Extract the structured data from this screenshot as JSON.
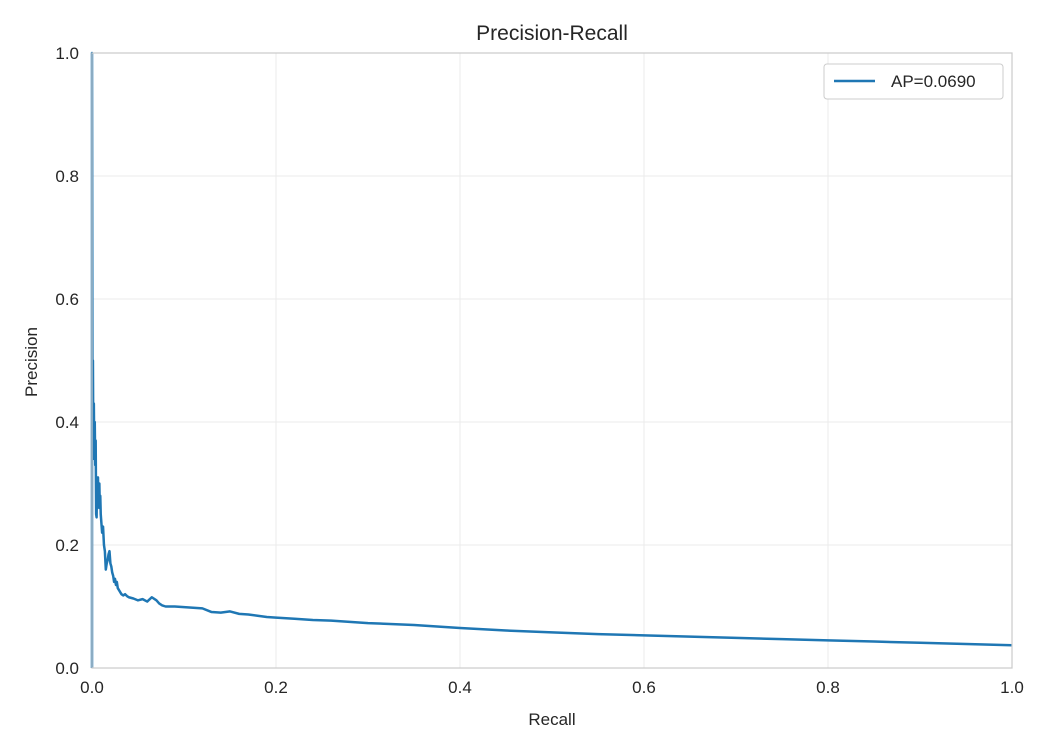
{
  "chart_data": {
    "type": "line",
    "title": "Precision-Recall",
    "xlabel": "Recall",
    "ylabel": "Precision",
    "xlim": [
      0.0,
      1.0
    ],
    "ylim": [
      0.0,
      1.0
    ],
    "xticks": [
      0.0,
      0.2,
      0.4,
      0.6,
      0.8,
      1.0
    ],
    "yticks": [
      0.0,
      0.2,
      0.4,
      0.6,
      0.8,
      1.0
    ],
    "xtick_labels": [
      "0.0",
      "0.2",
      "0.4",
      "0.6",
      "0.8",
      "1.0"
    ],
    "ytick_labels": [
      "0.0",
      "0.2",
      "0.4",
      "0.6",
      "0.8",
      "1.0"
    ],
    "grid": true,
    "legend_position": "top-right",
    "series": [
      {
        "name": "AP=0.0690",
        "color": "#1f77b4",
        "x": [
          0.0,
          0.0,
          0.0005,
          0.001,
          0.0015,
          0.002,
          0.0025,
          0.003,
          0.0035,
          0.004,
          0.0045,
          0.005,
          0.0055,
          0.006,
          0.0065,
          0.007,
          0.0075,
          0.008,
          0.0085,
          0.009,
          0.0095,
          0.01,
          0.011,
          0.012,
          0.013,
          0.014,
          0.015,
          0.016,
          0.017,
          0.018,
          0.019,
          0.02,
          0.021,
          0.022,
          0.023,
          0.024,
          0.025,
          0.026,
          0.027,
          0.028,
          0.03,
          0.032,
          0.034,
          0.036,
          0.038,
          0.04,
          0.045,
          0.05,
          0.055,
          0.06,
          0.065,
          0.07,
          0.073,
          0.076,
          0.08,
          0.085,
          0.09,
          0.1,
          0.11,
          0.12,
          0.13,
          0.14,
          0.15,
          0.16,
          0.17,
          0.18,
          0.19,
          0.2,
          0.22,
          0.24,
          0.26,
          0.28,
          0.3,
          0.35,
          0.4,
          0.45,
          0.5,
          0.55,
          0.6,
          0.65,
          0.7,
          0.75,
          0.8,
          0.85,
          0.9,
          0.95,
          1.0
        ],
        "y": [
          0.0,
          1.0,
          0.46,
          0.5,
          0.34,
          0.43,
          0.35,
          0.4,
          0.33,
          0.37,
          0.25,
          0.245,
          0.3,
          0.26,
          0.31,
          0.27,
          0.29,
          0.3,
          0.26,
          0.28,
          0.25,
          0.24,
          0.22,
          0.23,
          0.2,
          0.19,
          0.16,
          0.17,
          0.175,
          0.185,
          0.19,
          0.17,
          0.165,
          0.155,
          0.15,
          0.14,
          0.145,
          0.135,
          0.14,
          0.13,
          0.125,
          0.12,
          0.118,
          0.12,
          0.117,
          0.115,
          0.113,
          0.11,
          0.112,
          0.108,
          0.115,
          0.11,
          0.105,
          0.102,
          0.1,
          0.1,
          0.1,
          0.099,
          0.098,
          0.097,
          0.091,
          0.09,
          0.092,
          0.088,
          0.087,
          0.085,
          0.083,
          0.082,
          0.08,
          0.078,
          0.077,
          0.075,
          0.073,
          0.07,
          0.065,
          0.061,
          0.058,
          0.055,
          0.053,
          0.051,
          0.049,
          0.047,
          0.045,
          0.043,
          0.041,
          0.039,
          0.037
        ]
      }
    ]
  }
}
